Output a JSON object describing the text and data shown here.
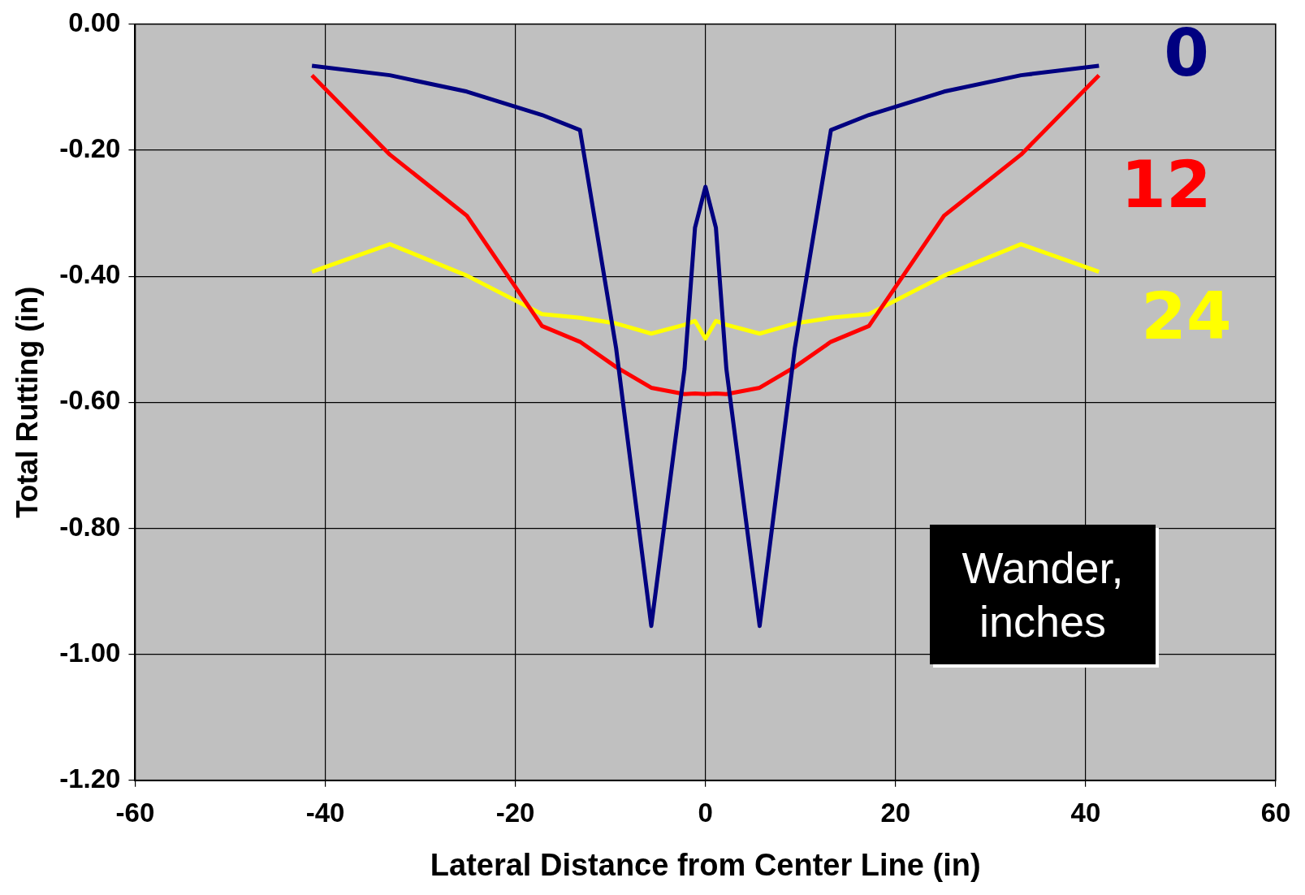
{
  "chart_data": {
    "type": "line",
    "xlabel": "Lateral Distance from Center Line (in)",
    "ylabel": "Total Rutting (in)",
    "legend_title": "Wander, inches",
    "xlim": [
      -60,
      60
    ],
    "xticks": [
      -60,
      -40,
      -20,
      0,
      20,
      40,
      60
    ],
    "ylim": [
      -1.2,
      0
    ],
    "yticks": [
      {
        "value": -1.2,
        "label": "-1.20"
      },
      {
        "value": -1,
        "label": "-1.00"
      },
      {
        "value": -0.8,
        "label": "-0.80"
      },
      {
        "value": -0.6,
        "label": "-0.60"
      },
      {
        "value": -0.4,
        "label": "-0.40"
      },
      {
        "value": -0.2,
        "label": "-0.20"
      },
      {
        "value": 0,
        "label": "0.00"
      }
    ],
    "grid": true,
    "marker": "none",
    "line_style": "solid",
    "x": [
      -41.4,
      -33.2,
      -25.1,
      -17.2,
      -13.2,
      -9.4,
      -5.7,
      -2.2,
      -1.1,
      0,
      1.1,
      2.2,
      5.7,
      9.4,
      13.2,
      17.2,
      25.1,
      33.2,
      41.4
    ],
    "series": [
      {
        "name": "0",
        "color": "#000080",
        "values": [
          -0.066,
          -0.081,
          -0.107,
          -0.144,
          -0.168,
          -0.514,
          -0.955,
          -0.547,
          -0.323,
          -0.258,
          -0.323,
          -0.547,
          -0.955,
          -0.514,
          -0.168,
          -0.144,
          -0.107,
          -0.081,
          -0.066
        ]
      },
      {
        "name": "12",
        "color": "#ff0000",
        "values": [
          -0.081,
          -0.207,
          -0.304,
          -0.479,
          -0.504,
          -0.544,
          -0.577,
          -0.587,
          -0.586,
          -0.587,
          -0.586,
          -0.587,
          -0.577,
          -0.544,
          -0.504,
          -0.479,
          -0.304,
          -0.207,
          -0.081
        ]
      },
      {
        "name": "24",
        "color": "#ffff00",
        "values": [
          -0.393,
          -0.349,
          -0.399,
          -0.46,
          -0.466,
          -0.475,
          -0.491,
          -0.477,
          -0.471,
          -0.499,
          -0.471,
          -0.477,
          -0.491,
          -0.475,
          -0.466,
          -0.46,
          -0.399,
          -0.349,
          -0.393
        ]
      }
    ]
  }
}
